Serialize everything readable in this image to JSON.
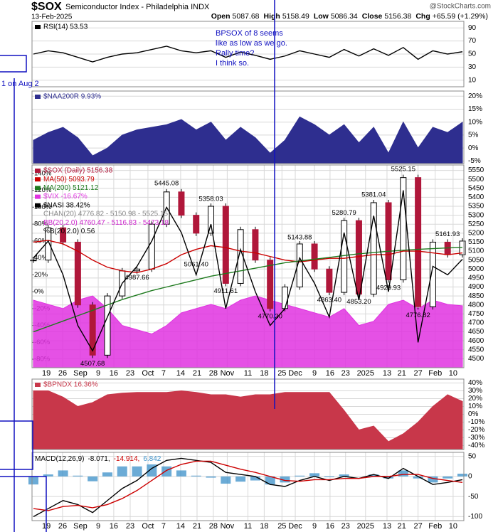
{
  "header": {
    "symbol": "$SOX",
    "name": "Semiconductor Index - Philadelphia INDX",
    "date": "13-Feb-2025",
    "source": "@StockCharts.com",
    "quote": [
      [
        "Open",
        "5087.68"
      ],
      [
        "High",
        "5158.49"
      ],
      [
        "Low",
        "5086.34"
      ],
      [
        "Close",
        "5156.38"
      ],
      [
        "Chg",
        "+65.59 (+1.29%)"
      ]
    ]
  },
  "annotations": {
    "note": [
      "BPSOX of 8 seems",
      "like as low as we go.",
      "Rally time?",
      "I think so."
    ],
    "side_note": "1 on Aug 2"
  },
  "chart_data": [
    {
      "type": "line",
      "xlim": [
        0,
        29
      ],
      "ylim": [
        0,
        100
      ],
      "yticks": [
        90,
        70,
        50,
        30,
        10
      ],
      "grid": true,
      "series": [
        {
          "name": "RSI(14) 53.53",
          "color": "#000000",
          "kind": "line",
          "values": [
            50,
            55,
            52,
            45,
            38,
            45,
            50,
            52,
            57,
            62,
            55,
            52,
            55,
            45,
            53,
            48,
            42,
            47,
            55,
            50,
            45,
            57,
            47,
            58,
            48,
            60,
            42,
            55,
            50,
            53.53
          ]
        }
      ]
    },
    {
      "type": "area",
      "xlim": [
        0,
        29
      ],
      "ylim": [
        -6,
        22
      ],
      "grid": true,
      "yticks": [
        {
          "value": 20,
          "label": "20%"
        },
        {
          "value": 15,
          "label": "15%"
        },
        {
          "value": 10,
          "label": "10%"
        },
        {
          "value": 5,
          "label": "5%"
        },
        {
          "value": 0,
          "label": "0%"
        },
        {
          "value": -5,
          "label": "-5%"
        }
      ],
      "series": [
        {
          "name": "$NAA200R 9.93%",
          "color": "#2e2e8f",
          "kind": "area",
          "values": [
            3,
            6,
            8,
            4,
            -3,
            0,
            5,
            7,
            8,
            9,
            11,
            7,
            10,
            3,
            8,
            4,
            -2,
            3,
            12,
            9,
            5,
            9,
            2,
            8,
            -2,
            10,
            0,
            8,
            6,
            9.93
          ]
        }
      ]
    },
    {
      "type": "price",
      "xlim": [
        0,
        29
      ],
      "ylim": [
        4450,
        5580
      ],
      "grid": true,
      "yticks": [
        5550,
        5500,
        5450,
        5400,
        5350,
        5300,
        5250,
        5200,
        5150,
        5100,
        5050,
        5000,
        4950,
        4900,
        4850,
        4800,
        4750,
        4700,
        4650,
        4600,
        4550,
        4500
      ],
      "y2lim": [
        -90,
        150
      ],
      "y2ticks": [
        {
          "value": 140,
          "label": "140%"
        },
        {
          "value": 120,
          "label": "120%"
        },
        {
          "value": 100,
          "label": "100%"
        },
        {
          "value": 80,
          "label": "80%"
        },
        {
          "value": 60,
          "label": "60%"
        },
        {
          "value": 40,
          "label": "40%"
        },
        {
          "value": 20,
          "label": "20%"
        },
        {
          "value": 0,
          "label": "0%"
        },
        {
          "value": -20,
          "label": "-20%"
        },
        {
          "value": -40,
          "label": "-40%"
        },
        {
          "value": -60,
          "label": "-60%"
        },
        {
          "value": -80,
          "label": "-80%"
        }
      ],
      "xticks": [
        {
          "value": 0.87,
          "label": "19"
        },
        {
          "value": 1.97,
          "label": "26"
        },
        {
          "value": 3.17,
          "label": "Sep"
        },
        {
          "value": 4.38,
          "label": "9"
        },
        {
          "value": 5.43,
          "label": "16"
        },
        {
          "value": 6.54,
          "label": "23"
        },
        {
          "value": 7.74,
          "label": "Oct"
        },
        {
          "value": 8.8,
          "label": "7"
        },
        {
          "value": 9.95,
          "label": "14"
        },
        {
          "value": 11.06,
          "label": "21"
        },
        {
          "value": 12.16,
          "label": "28"
        },
        {
          "value": 13.1,
          "label": "Nov"
        },
        {
          "value": 14.5,
          "label": "11"
        },
        {
          "value": 15.6,
          "label": "18"
        },
        {
          "value": 16.8,
          "label": "25"
        },
        {
          "value": 17.7,
          "label": "Dec"
        },
        {
          "value": 19,
          "label": "9"
        },
        {
          "value": 20.05,
          "label": "16"
        },
        {
          "value": 21.1,
          "label": "23"
        },
        {
          "value": 22.45,
          "label": "2025"
        },
        {
          "value": 23.9,
          "label": "13"
        },
        {
          "value": 24.9,
          "label": "21"
        },
        {
          "value": 26,
          "label": "27"
        },
        {
          "value": 27.16,
          "label": "Feb"
        },
        {
          "value": 28.37,
          "label": "10"
        }
      ],
      "series": [
        {
          "name": "$SOX (Daily) 5156.38",
          "color": "#b0173a",
          "kind": "candle",
          "values": [
            5050,
            5230,
            5150,
            4800,
            4520,
            4850,
            4990,
            5000,
            5250,
            5430,
            5300,
            5200,
            5350,
            4920,
            5220,
            5050,
            4780,
            4900,
            5140,
            5000,
            4870,
            5270,
            4860,
            5370,
            4940,
            5510,
            4790,
            5150,
            5080,
            5156
          ]
        },
        {
          "name": "MA(50) 5093.79",
          "color": "#cc0000",
          "kind": "line",
          "values": [
            5150,
            5160,
            5140,
            5100,
            5050,
            5010,
            4990,
            4980,
            5000,
            5030,
            5080,
            5110,
            5130,
            5120,
            5100,
            5090,
            5070,
            5050,
            5040,
            5050,
            5060,
            5060,
            5070,
            5080,
            5080,
            5100,
            5100,
            5090,
            5080,
            5090
          ]
        },
        {
          "name": "MA(200) 5121.12",
          "color": "#1e7a1e",
          "kind": "line",
          "values": [
            4650,
            4680,
            4710,
            4740,
            4770,
            4800,
            4830,
            4855,
            4880,
            4900,
            4920,
            4940,
            4960,
            4975,
            4990,
            5005,
            5020,
            5035,
            5045,
            5055,
            5065,
            5075,
            5085,
            5092,
            5099,
            5105,
            5110,
            5114,
            5118,
            5121
          ]
        },
        {
          "name": "$VIX -16.67%",
          "color": "#e033e0",
          "kind": "area",
          "axis": "y2",
          "values": [
            -10,
            -15,
            -20,
            -10,
            -5,
            -20,
            -40,
            -45,
            -50,
            -40,
            -25,
            -20,
            -15,
            -20,
            -10,
            -5,
            -10,
            -15,
            -20,
            -25,
            -30,
            -20,
            -40,
            -35,
            -15,
            -10,
            -20,
            -10,
            -15,
            -16.67
          ]
        },
        {
          "name": "$NASI 38.42%",
          "color": "#000000",
          "kind": "line",
          "axis": "y2",
          "values": [
            40,
            60,
            20,
            -40,
            -70,
            -30,
            10,
            30,
            60,
            100,
            70,
            20,
            80,
            -20,
            50,
            0,
            -40,
            -20,
            40,
            10,
            -30,
            70,
            -10,
            90,
            0,
            120,
            -60,
            30,
            20,
            38.42
          ]
        }
      ],
      "notes": [
        {
          "text": "CHAN(20) 4776.82 - 5150.98 - 5525.15",
          "color": "#888888"
        },
        {
          "text": "BB(20,2.0) 4760.47 - 5116.83 - 5473.18",
          "color": "#cc22cc"
        },
        {
          "text": "%B(20,2.0) 0.56",
          "color": "#000000"
        }
      ],
      "value_labels": [
        {
          "x": 9,
          "value": 5445.08,
          "label": "5445.08"
        },
        {
          "x": 12,
          "value": 5358.03,
          "label": "5358.03"
        },
        {
          "x": 11,
          "value": 5061.4,
          "label": "5061.40"
        },
        {
          "x": 7,
          "value": 4987.66,
          "label": "4987.66"
        },
        {
          "x": 4,
          "value": 4507.68,
          "label": "4507.68"
        },
        {
          "x": 13,
          "value": 4911.61,
          "label": "4911.61"
        },
        {
          "x": 16,
          "value": 4770.3,
          "label": "4770.30"
        },
        {
          "x": 18,
          "value": 5143.88,
          "label": "5143.88"
        },
        {
          "x": 20,
          "value": 4863.4,
          "label": "4863.40"
        },
        {
          "x": 21,
          "value": 5280.79,
          "label": "5280.79"
        },
        {
          "x": 22,
          "value": 4853.2,
          "label": "4853.20"
        },
        {
          "x": 23,
          "value": 5381.04,
          "label": "5381.04"
        },
        {
          "x": 24,
          "value": 4929.93,
          "label": "4929.93"
        },
        {
          "x": 25,
          "value": 5525.15,
          "label": "5525.15"
        },
        {
          "x": 26,
          "value": 4776.82,
          "label": "4776.82"
        },
        {
          "x": 28,
          "value": 5161.93,
          "label": "5161.93"
        }
      ]
    },
    {
      "type": "area",
      "xlim": [
        0,
        29
      ],
      "ylim": [
        -45,
        45
      ],
      "grid": true,
      "yticks": [
        {
          "value": 40,
          "label": "40%"
        },
        {
          "value": 30,
          "label": "30%"
        },
        {
          "value": 20,
          "label": "20%"
        },
        {
          "value": 10,
          "label": "10%"
        },
        {
          "value": 0,
          "label": "0%"
        },
        {
          "value": -10,
          "label": "-10%"
        },
        {
          "value": -20,
          "label": "-20%"
        },
        {
          "value": -30,
          "label": "-30%"
        },
        {
          "value": -40,
          "label": "-40%"
        }
      ],
      "series": [
        {
          "name": "$BPNDX 16.36%",
          "color": "#c8374a",
          "kind": "area",
          "values": [
            30,
            30,
            22,
            10,
            15,
            25,
            27,
            28,
            28,
            28,
            30,
            28,
            25,
            25,
            22,
            25,
            25,
            28,
            28,
            28,
            28,
            5,
            -20,
            -15,
            -35,
            -25,
            -10,
            10,
            25,
            16.36
          ]
        }
      ]
    },
    {
      "type": "macd",
      "title": "MACD(12,26,9)",
      "xlim": [
        0,
        29
      ],
      "ylim": [
        -110,
        60
      ],
      "yticks": [
        50,
        0,
        -50,
        -100
      ],
      "grid": true,
      "xticks": [
        {
          "value": 0.87,
          "label": "19"
        },
        {
          "value": 1.97,
          "label": "26"
        },
        {
          "value": 3.17,
          "label": "Sep"
        },
        {
          "value": 4.38,
          "label": "9"
        },
        {
          "value": 5.43,
          "label": "16"
        },
        {
          "value": 6.54,
          "label": "23"
        },
        {
          "value": 7.74,
          "label": "Oct"
        },
        {
          "value": 8.8,
          "label": "7"
        },
        {
          "value": 9.95,
          "label": "14"
        },
        {
          "value": 11.06,
          "label": "21"
        },
        {
          "value": 12.16,
          "label": "28"
        },
        {
          "value": 13.1,
          "label": "Nov"
        },
        {
          "value": 14.5,
          "label": "11"
        },
        {
          "value": 15.6,
          "label": "18"
        },
        {
          "value": 16.8,
          "label": "25"
        },
        {
          "value": 17.7,
          "label": "Dec"
        },
        {
          "value": 19,
          "label": "9"
        },
        {
          "value": 20.05,
          "label": "16"
        },
        {
          "value": 21.1,
          "label": "23"
        },
        {
          "value": 22.45,
          "label": "2025"
        },
        {
          "value": 23.9,
          "label": "13"
        },
        {
          "value": 24.9,
          "label": "21"
        },
        {
          "value": 26,
          "label": "27"
        },
        {
          "value": 27.16,
          "label": "Feb"
        },
        {
          "value": 28.37,
          "label": "10"
        }
      ],
      "series": [
        {
          "name": "6.842",
          "color": "#3a8fc8",
          "kind": "bar",
          "values": [
            -20,
            5,
            15,
            2,
            -12,
            10,
            25,
            25,
            30,
            25,
            15,
            2,
            -3,
            -18,
            -13,
            -10,
            -20,
            -15,
            2,
            8,
            -2,
            5,
            0,
            5,
            -5,
            15,
            -5,
            -15,
            -5,
            6.842
          ]
        },
        {
          "name": "-8.071,",
          "color": "#000000",
          "kind": "line",
          "values": [
            -100,
            -80,
            -60,
            -70,
            -90,
            -60,
            -30,
            -10,
            20,
            40,
            45,
            40,
            35,
            10,
            5,
            0,
            -20,
            -25,
            -10,
            0,
            -10,
            0,
            -5,
            5,
            -5,
            20,
            0,
            -20,
            -15,
            -8.071
          ]
        },
        {
          "name": "-14.914,",
          "color": "#cc0000",
          "kind": "line",
          "values": [
            -80,
            -85,
            -75,
            -72,
            -78,
            -70,
            -55,
            -35,
            -10,
            15,
            30,
            38,
            38,
            28,
            18,
            10,
            0,
            -10,
            -12,
            -8,
            -8,
            -5,
            -5,
            0,
            0,
            5,
            5,
            -5,
            -10,
            -14.914
          ]
        }
      ]
    }
  ]
}
